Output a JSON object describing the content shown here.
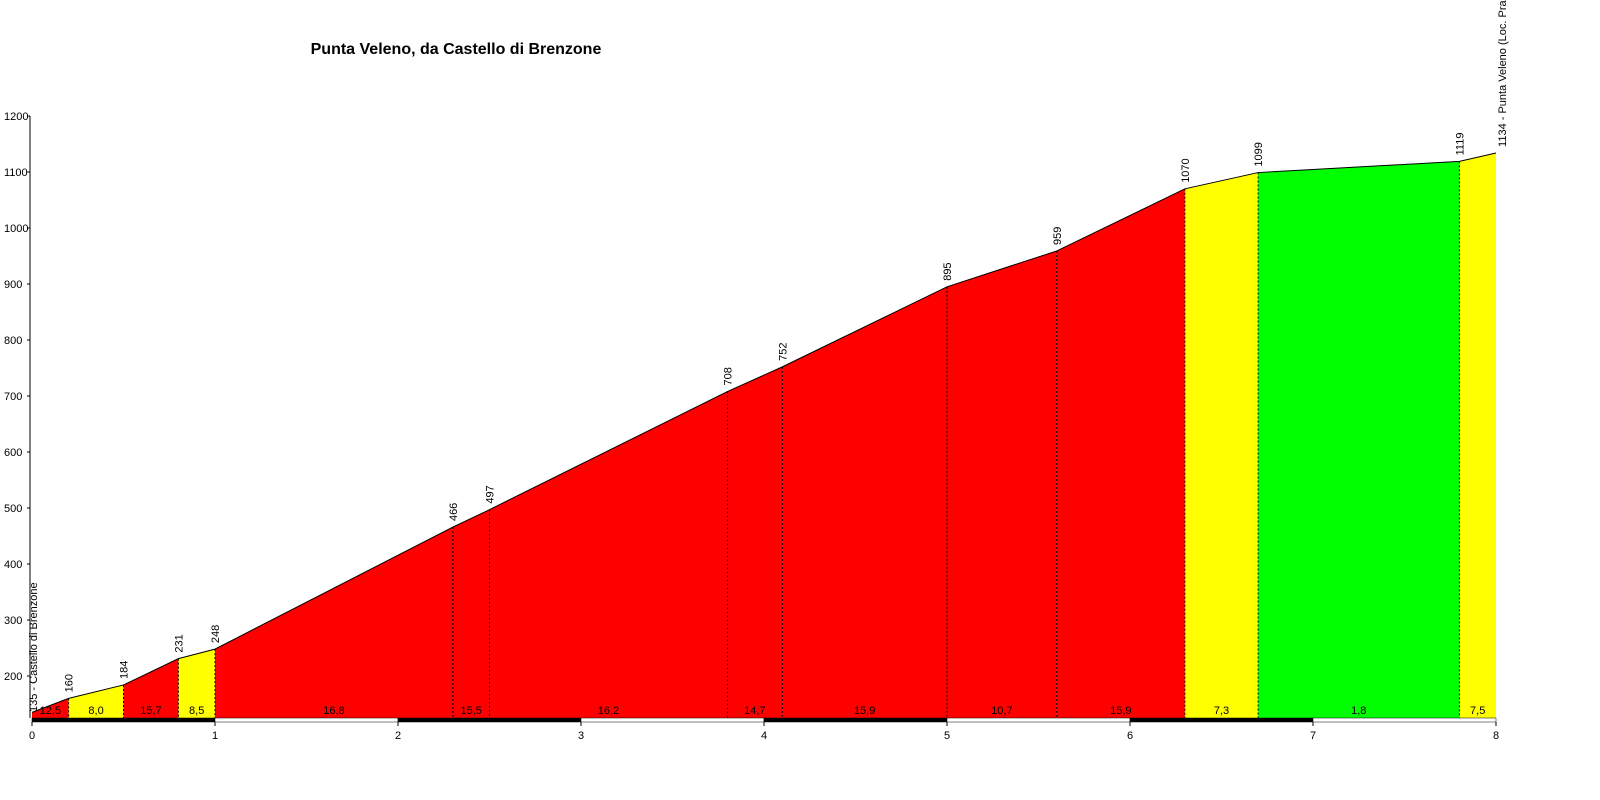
{
  "chart_data": {
    "type": "area",
    "title": "Punta Veleno, da Castello di Brenzone",
    "x": [
      0,
      0.2,
      0.5,
      0.8,
      1.0,
      2.3,
      2.5,
      3.8,
      4.1,
      5.0,
      5.6,
      6.3,
      6.7,
      7.8,
      8.0
    ],
    "values": [
      135,
      160,
      184,
      231,
      248,
      466,
      497,
      708,
      752,
      895,
      959,
      1070,
      1099,
      1119,
      1134
    ],
    "value_labels": [
      "135 - Castello di Brenzone",
      "160",
      "184",
      "231",
      "248",
      "466",
      "497",
      "708",
      "752",
      "895",
      "959",
      "1070",
      "1099",
      "1119",
      "1134 - Punta Veleno (Loc. Pra"
    ],
    "segments": {
      "values": [
        12.5,
        8.0,
        15.7,
        8.5,
        16.8,
        15.5,
        16.2,
        14.7,
        15.9,
        10.7,
        15.9,
        7.3,
        1.8,
        7.5
      ],
      "value_labels": [
        "12,5",
        "8,0",
        "15,7",
        "8,5",
        "16,8",
        "15,5",
        "16,2",
        "14,7",
        "15,9",
        "10,7",
        "15,9",
        "7,3",
        "1,8",
        "7,5"
      ],
      "colors": [
        "#ff0000",
        "#ffff00",
        "#ff0000",
        "#ffff00",
        "#ff0000",
        "#ff0000",
        "#ff0000",
        "#ff0000",
        "#ff0000",
        "#ff0000",
        "#ff0000",
        "#ffff00",
        "#00ff00",
        "#ffff00"
      ]
    },
    "xlim": [
      0,
      8
    ],
    "xticks": [
      0,
      1,
      2,
      3,
      4,
      5,
      6,
      7,
      8
    ],
    "ylim": [
      125,
      1200
    ],
    "yticks": [
      200,
      300,
      400,
      500,
      600,
      700,
      800,
      900,
      1000,
      1100,
      1200
    ]
  }
}
